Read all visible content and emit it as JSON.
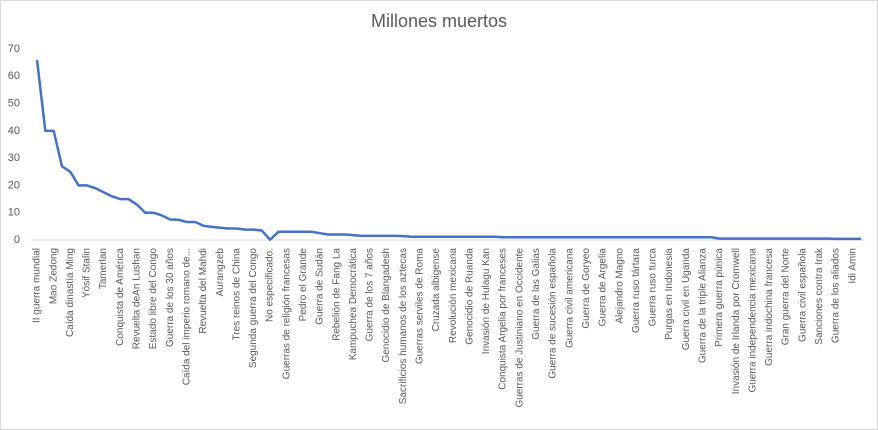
{
  "chart_data": {
    "type": "line",
    "title": "Millones muertos",
    "categories": [
      "II guerra mundial",
      null,
      "Mao Zedong",
      null,
      "Caída dinastía Ming",
      null,
      "Yósif Stalin",
      null,
      "Tamerlan",
      null,
      "Conquista de América",
      null,
      "Revuelta deAn Lushan",
      null,
      "Estado libre del Congo",
      null,
      "Guerra de los 30 años",
      null,
      "Caída del imperio romano de...",
      null,
      "Revuelta del Mahdi",
      null,
      "Aurangzeb",
      null,
      "Tres reinos de China",
      null,
      "Segunda guerra del Congo",
      null,
      "No especificado.",
      null,
      "Guerras de religión francesas",
      null,
      "Pedro el Grande",
      null,
      "Guerra de Sudán",
      null,
      "Rebelión de Fang La",
      null,
      "Kampuchea Democrática",
      null,
      "Guerra de los 7 años",
      null,
      "Genocidio de Blangadesh",
      null,
      "Sacrificios humanos de los aztecas",
      null,
      "Guerras serviles de Roma",
      null,
      "Cruzada albigense",
      null,
      "Revolución mexicana",
      null,
      "Genocidio de Ruanda",
      null,
      "Invasión de Hulagu Kan",
      null,
      "Conquista Argelia por franceses",
      null,
      "Guerras de Justiniano en Occidente",
      null,
      "Guerra de las Galias",
      null,
      "Guerra de sucesión española",
      null,
      "Guerra civil americana",
      null,
      "Guerra de Goryeo",
      null,
      "Guerra de Argelia",
      null,
      "Alejandro Magno",
      null,
      "Guerra ruso tártara",
      null,
      "Guerra ruso turca",
      null,
      "Purgas en Indonesia",
      null,
      "Guerra civil en Uganda",
      null,
      "Guerra de la triple Alianza",
      null,
      "Primera guerra púnica",
      null,
      "Invasión de Irlanda por Cromwell",
      null,
      "Guerra independencia mexicana",
      null,
      "Guerra indochina francesa",
      null,
      "Gran guerra del Norte",
      null,
      "Guerra civil española",
      null,
      "Sanciones contra Irak",
      null,
      "Guerra de los aliados",
      null,
      "Idi Amin",
      null
    ],
    "series": [
      {
        "name": "Millones muertos",
        "color": "#4472c4",
        "values": [
          66,
          40,
          40,
          27,
          25,
          20,
          20,
          19,
          17.5,
          16,
          15,
          15,
          13,
          10,
          10,
          9,
          7.5,
          7.4,
          6.6,
          6.6,
          5.2,
          4.8,
          4.5,
          4.2,
          4.2,
          3.8,
          3.8,
          3.5,
          0.1,
          3,
          3,
          3,
          3,
          3,
          2.5,
          2,
          2,
          2,
          1.8,
          1.5,
          1.5,
          1.5,
          1.5,
          1.5,
          1.4,
          1.2,
          1.2,
          1.2,
          1.2,
          1.2,
          1.2,
          1.2,
          1.2,
          1.2,
          1.2,
          1.2,
          1,
          1,
          1,
          1,
          1,
          1,
          1,
          1,
          1,
          1,
          1,
          1,
          1,
          1,
          1,
          1,
          1,
          1,
          1,
          1,
          1,
          1,
          1,
          1,
          1,
          1,
          0.5,
          0.5,
          0.5,
          0.5,
          0.5,
          0.5,
          0.5,
          0.5,
          0.5,
          0.5,
          0.5,
          0.5,
          0.5,
          0.5,
          0.4,
          0.4,
          0.4,
          0.4
        ]
      }
    ],
    "ylim": [
      0,
      70
    ],
    "yticks": [
      0,
      10,
      20,
      30,
      40,
      50,
      60,
      70
    ],
    "grid": false
  }
}
